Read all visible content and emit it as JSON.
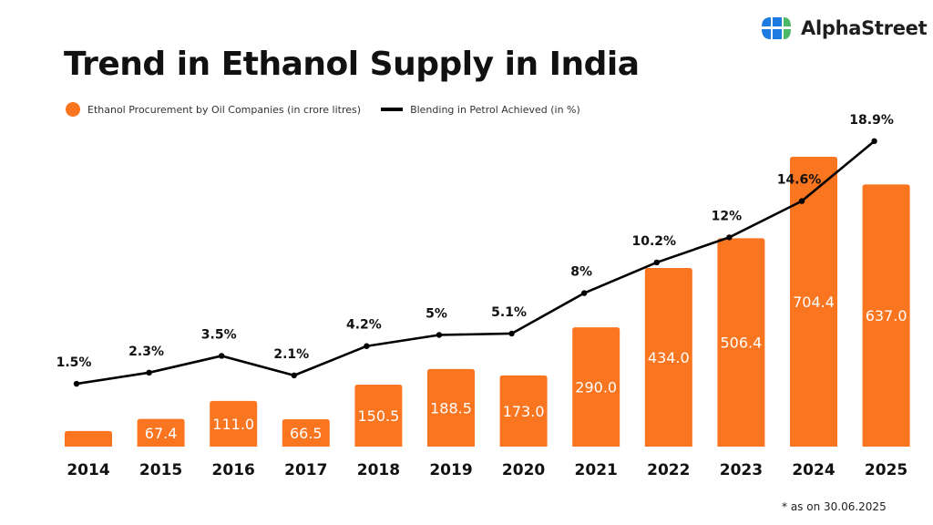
{
  "brand": {
    "name": "AlphaStreet",
    "blue": "#1E7BE0",
    "green": "#4CB86A"
  },
  "footnote": "* as on 30.06.2025",
  "colors": {
    "bar": "#FA7520",
    "line": "#000000"
  },
  "chart_data": {
    "type": "bar",
    "title": "Trend in Ethanol Supply in India",
    "xlabel": "",
    "ylabel": "",
    "grid": false,
    "legend_position": "top-left",
    "categories": [
      "2014",
      "2015",
      "2016",
      "2017",
      "2018",
      "2019",
      "2020",
      "2021",
      "2022",
      "2023",
      "2024",
      "2025"
    ],
    "series": [
      {
        "name": "Ethanol Procurement by Oil Companies (in  crore litres)",
        "type": "bar",
        "values": [
          38,
          67.4,
          111.0,
          66.5,
          150.5,
          188.5,
          173.0,
          290.0,
          434.0,
          506.4,
          704.4,
          637.0
        ],
        "labels": [
          "",
          "67.4",
          "111.0",
          "66.5",
          "150.5",
          "188.5",
          "173.0",
          "290.0",
          "434.0",
          "506.4",
          "704.4",
          "637.0"
        ]
      },
      {
        "name": "Blending in Petrol Achieved (in %)",
        "type": "line",
        "values": [
          1.5,
          2.3,
          3.5,
          2.1,
          4.2,
          5,
          5.1,
          8,
          10.2,
          12,
          14.6,
          18.9
        ],
        "labels": [
          "1.5%",
          "2.3%",
          "3.5%",
          "2.1%",
          "4.2%",
          "5%",
          "5.1%",
          "8%",
          "10.2%",
          "12%",
          "14.6%",
          "18.9%"
        ]
      }
    ],
    "annotations": [
      "* as on 30.06.2025"
    ]
  }
}
